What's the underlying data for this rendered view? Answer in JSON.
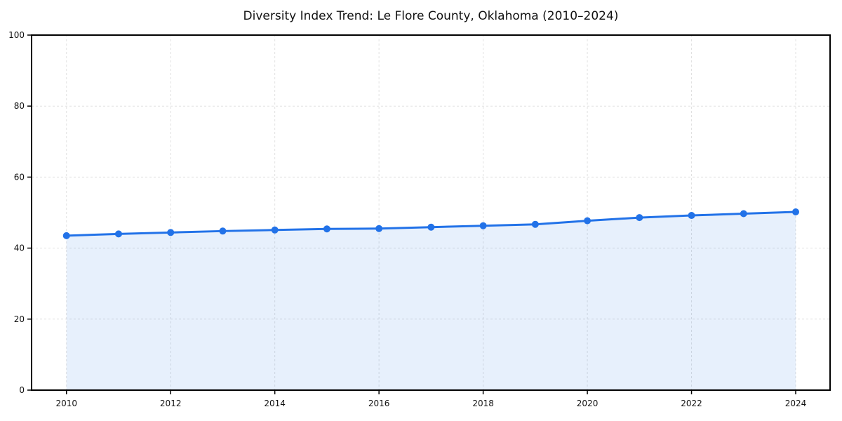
{
  "chart_data": {
    "type": "line",
    "title": "Diversity Index Trend: Le Flore County, Oklahoma (2010–2024)",
    "xlabel": "",
    "ylabel": "",
    "x": [
      2010,
      2011,
      2012,
      2013,
      2014,
      2015,
      2016,
      2017,
      2018,
      2019,
      2020,
      2021,
      2022,
      2023,
      2024
    ],
    "series": [
      {
        "name": "Diversity Index",
        "values": [
          43.5,
          44.0,
          44.4,
          44.8,
          45.1,
          45.4,
          45.5,
          45.9,
          46.3,
          46.7,
          47.7,
          48.6,
          49.2,
          49.7,
          50.2
        ]
      }
    ],
    "xticks": [
      2010,
      2012,
      2014,
      2016,
      2018,
      2020,
      2022,
      2024
    ],
    "yticks": [
      0,
      20,
      40,
      60,
      80,
      100
    ],
    "xlim": [
      2009.33,
      2024.66
    ],
    "ylim": [
      0,
      100
    ],
    "grid": true,
    "legend": "none",
    "area_fill": true,
    "colors": {
      "line": "#2272e8",
      "marker": "#2272e8",
      "area": "rgba(34,114,232,0.11)",
      "grid": "#e0e0e0",
      "frame": "#000000",
      "text": "#111111",
      "background": "#ffffff"
    }
  }
}
